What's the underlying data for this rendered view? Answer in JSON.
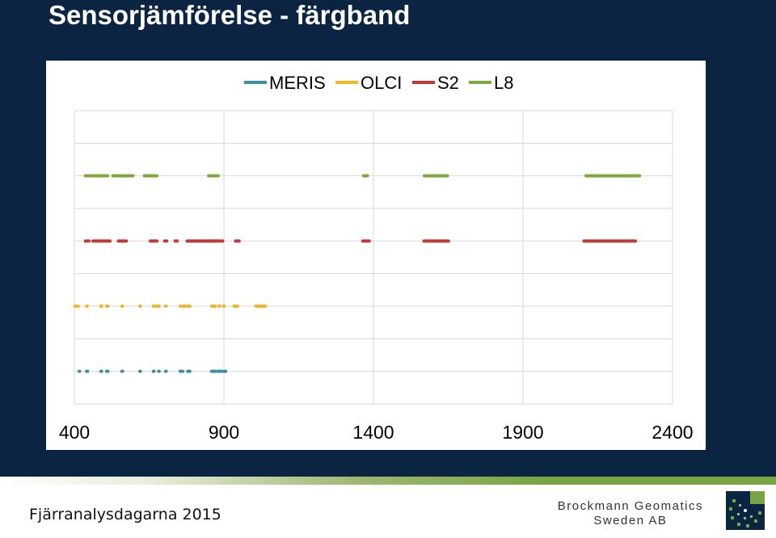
{
  "slide": {
    "title": "Sensorjämförelse - färgband"
  },
  "footer": {
    "event": "Fjärranalysdagarna 2015",
    "company_line1": "Brockmann Geomatics",
    "company_line2": "Sweden AB"
  },
  "colors": {
    "background": "#0a2442",
    "MERIS": "#3b8ea5",
    "OLCI": "#f2b824",
    "S2": "#c0383a",
    "L8": "#7fa83e",
    "logo_green": "#7aa443"
  },
  "chart_data": {
    "type": "line",
    "title": "",
    "xlabel": "",
    "ylabel": "",
    "xlim": [
      400,
      2400
    ],
    "x_ticks": [
      "400",
      "900",
      "1400",
      "1900",
      "2400"
    ],
    "grid": true,
    "legend_position": "top",
    "series": [
      {
        "name": "MERIS",
        "level": 1,
        "bands": [
          [
            412,
            418
          ],
          [
            437,
            448
          ],
          [
            485,
            495
          ],
          [
            504,
            516
          ],
          [
            555,
            565
          ],
          [
            615,
            625
          ],
          [
            660,
            670
          ],
          [
            678,
            684
          ],
          [
            701,
            711
          ],
          [
            750,
            757
          ],
          [
            757,
            764
          ],
          [
            775,
            790
          ],
          [
            855,
            875
          ],
          [
            875,
            895
          ],
          [
            895,
            910
          ]
        ]
      },
      {
        "name": "OLCI",
        "level": 3,
        "bands": [
          [
            398,
            410
          ],
          [
            407,
            417
          ],
          [
            437,
            447
          ],
          [
            485,
            495
          ],
          [
            504,
            516
          ],
          [
            555,
            565
          ],
          [
            615,
            625
          ],
          [
            660,
            670
          ],
          [
            671,
            676
          ],
          [
            678,
            684
          ],
          [
            701,
            711
          ],
          [
            750,
            757
          ],
          [
            760,
            762
          ],
          [
            762,
            764
          ],
          [
            765,
            767
          ],
          [
            775,
            790
          ],
          [
            855,
            875
          ],
          [
            880,
            890
          ],
          [
            895,
            905
          ],
          [
            930,
            950
          ],
          [
            1003,
            1043
          ]
        ]
      },
      {
        "name": "S2",
        "level": 5,
        "bands": [
          [
            433,
            453
          ],
          [
            458,
            523
          ],
          [
            543,
            578
          ],
          [
            650,
            680
          ],
          [
            698,
            713
          ],
          [
            733,
            748
          ],
          [
            773,
            793
          ],
          [
            785,
            900
          ],
          [
            855,
            875
          ],
          [
            935,
            955
          ],
          [
            1360,
            1390
          ],
          [
            1565,
            1655
          ],
          [
            2100,
            2280
          ]
        ]
      },
      {
        "name": "L8",
        "level": 7,
        "bands": [
          [
            433,
            453
          ],
          [
            450,
            515
          ],
          [
            525,
            600
          ],
          [
            630,
            680
          ],
          [
            845,
            885
          ],
          [
            1363,
            1384
          ],
          [
            1566,
            1651
          ],
          [
            2107,
            2294
          ]
        ]
      }
    ]
  }
}
